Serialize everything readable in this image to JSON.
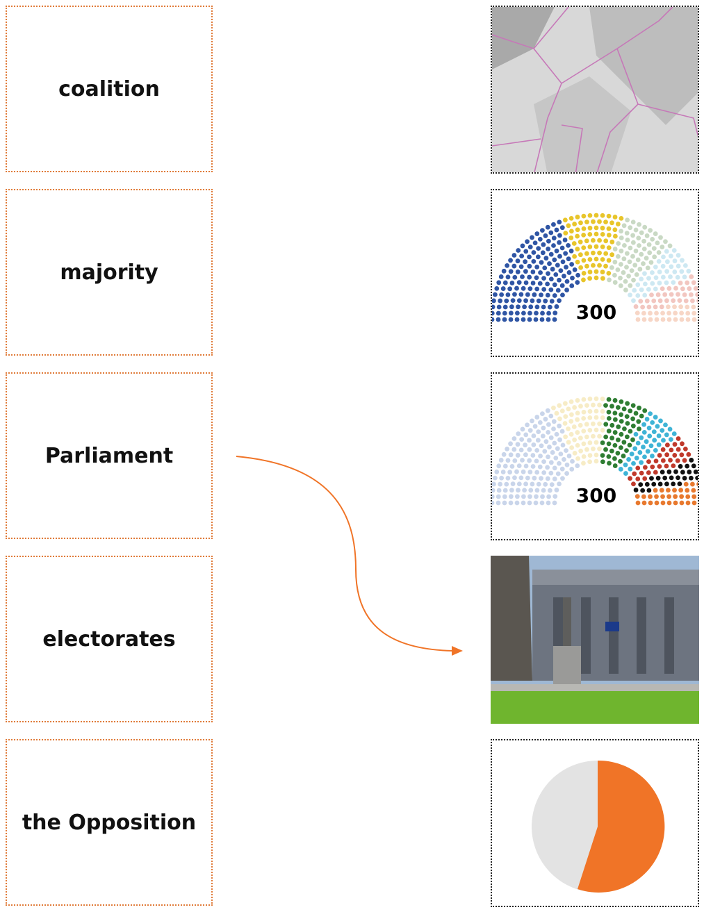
{
  "terms": [
    "coalition",
    "majority",
    "Parliament",
    "electorates",
    "the Opposition"
  ],
  "images": [
    {
      "label": null
    },
    {
      "label": "300"
    },
    {
      "label": "300"
    },
    {
      "label": null
    },
    {
      "label": null
    }
  ]
}
